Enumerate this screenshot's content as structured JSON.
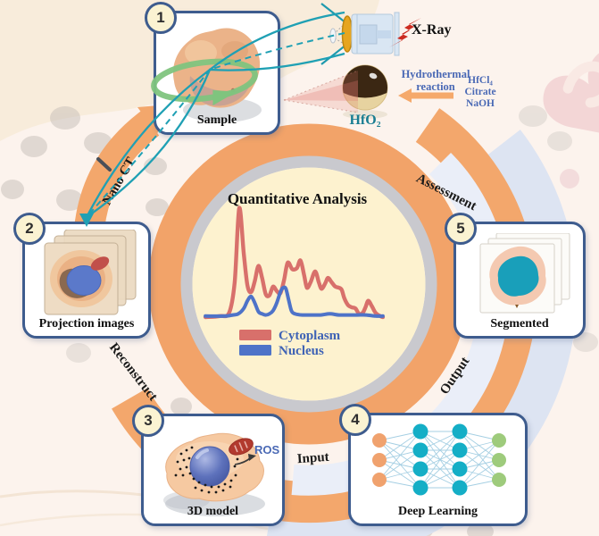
{
  "figure": {
    "steps": [
      {
        "number": "1",
        "label": "Sample"
      },
      {
        "number": "2",
        "label": "Projection images"
      },
      {
        "number": "3",
        "label": "3D model"
      },
      {
        "number": "4",
        "label": "Deep Learning"
      },
      {
        "number": "5",
        "label": "Segmented"
      }
    ],
    "ring_labels": {
      "nano_ct": "Nano CT",
      "reconstruct": "Reconstruct",
      "input": "Input",
      "output": "Output",
      "assessment": "Assessment"
    },
    "synthesis": {
      "xray_label": "X-Ray",
      "reaction_line1": "Hydrothermal",
      "reaction_line2": "reaction",
      "reagents": [
        "HfCl₄",
        "Citrate",
        "NaOH"
      ],
      "product_label": "HfO₂"
    },
    "annotations": {
      "ros": "ROS"
    }
  },
  "chart_data": {
    "type": "line",
    "title": "Quantitative Analysis",
    "xlabel": "",
    "ylabel": "",
    "axes_visible": false,
    "xlim": [
      0,
      100
    ],
    "ylim": [
      0,
      100
    ],
    "note": "stylized intensity distributions, unlabeled axes, values in relative units",
    "legend_position": "bottom-inside",
    "series": [
      {
        "name": "Cytoplasm",
        "color": "#d8706b",
        "points": [
          [
            1,
            0
          ],
          [
            9,
            1
          ],
          [
            14,
            4
          ],
          [
            17,
            32
          ],
          [
            19.5,
            100
          ],
          [
            22,
            58
          ],
          [
            24,
            29
          ],
          [
            26,
            23
          ],
          [
            28,
            33
          ],
          [
            30,
            47
          ],
          [
            32,
            36
          ],
          [
            34,
            21
          ],
          [
            36,
            20
          ],
          [
            38,
            28
          ],
          [
            40,
            24
          ],
          [
            42,
            22
          ],
          [
            44,
            34
          ],
          [
            46,
            50
          ],
          [
            48.5,
            44
          ],
          [
            51,
            45
          ],
          [
            53,
            52
          ],
          [
            55,
            38
          ],
          [
            56.5,
            27
          ],
          [
            58.5,
            32
          ],
          [
            61,
            42
          ],
          [
            63,
            32
          ],
          [
            64.5,
            26
          ],
          [
            66.5,
            31
          ],
          [
            68,
            36
          ],
          [
            70,
            32
          ],
          [
            72,
            28
          ],
          [
            74,
            27
          ],
          [
            75.5,
            25
          ],
          [
            77,
            17
          ],
          [
            79,
            11
          ],
          [
            81,
            9
          ],
          [
            83,
            8
          ],
          [
            85,
            3
          ],
          [
            87,
            4
          ],
          [
            88.5,
            9
          ],
          [
            90,
            15
          ],
          [
            92,
            10
          ],
          [
            94,
            4
          ],
          [
            96.5,
            1
          ],
          [
            98,
            0
          ]
        ]
      },
      {
        "name": "Nucleus",
        "color": "#4e73c8",
        "points": [
          [
            1,
            1
          ],
          [
            12,
            1
          ],
          [
            16,
            2
          ],
          [
            19,
            3
          ],
          [
            22,
            8
          ],
          [
            24,
            15
          ],
          [
            26,
            19
          ],
          [
            28,
            13
          ],
          [
            30,
            5
          ],
          [
            32,
            3
          ],
          [
            34,
            2
          ],
          [
            36,
            3
          ],
          [
            38,
            6
          ],
          [
            40,
            13
          ],
          [
            42,
            23
          ],
          [
            43.5,
            27
          ],
          [
            45,
            26
          ],
          [
            46.5,
            16
          ],
          [
            48,
            6
          ],
          [
            50,
            3
          ],
          [
            54,
            2
          ],
          [
            59,
            2
          ],
          [
            64,
            2
          ],
          [
            69,
            3
          ],
          [
            74,
            2
          ],
          [
            79,
            2
          ],
          [
            84,
            2
          ],
          [
            89,
            2
          ],
          [
            94,
            1
          ],
          [
            98,
            1
          ]
        ]
      }
    ]
  },
  "deep_learning_network": {
    "layers": [
      3,
      4,
      4,
      3
    ],
    "layer_colors": [
      "#f0a26e",
      "#14aec6",
      "#14aec6",
      "#9ecb7c"
    ]
  },
  "colors": {
    "ring_orange": "#f2a369",
    "outer_lavender": "#dde4f2",
    "beam_teal": "#1fa0b4",
    "rotation_green": "#7fc47e",
    "box_border_blue": "#3e5c8e",
    "center_cream": "#fdf2cf",
    "accent_text_blue": "#4a69b5",
    "product_text_teal": "#187d92"
  }
}
